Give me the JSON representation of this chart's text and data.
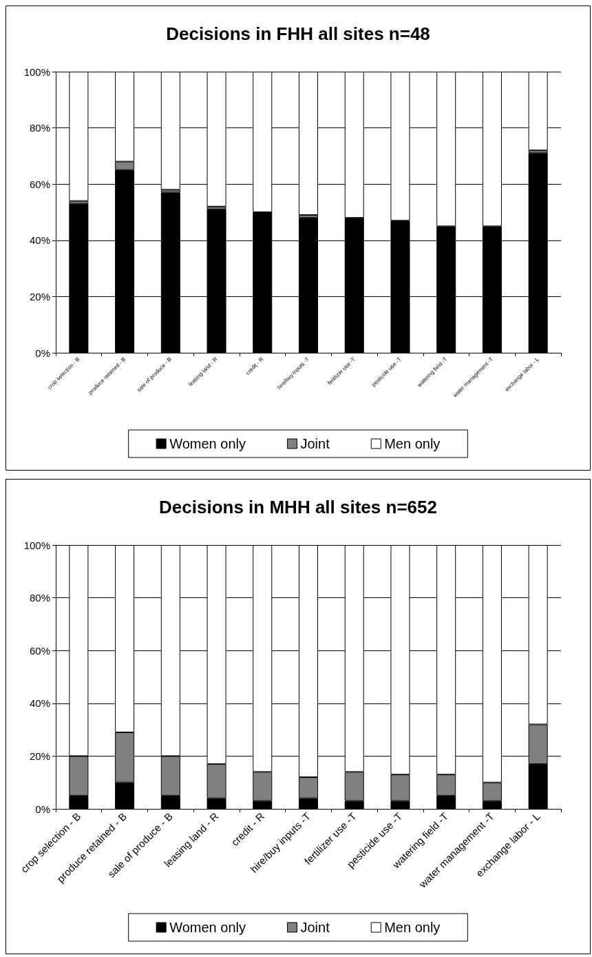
{
  "chart_data": [
    {
      "type": "bar",
      "title": "Decisions in FHH all sites n=48",
      "stacked": true,
      "categories": [
        "crop selection - B",
        "produce retained - B",
        "sale of produce - B",
        "leasing land - R",
        "credit - R",
        "hire/buy inputs -T",
        "fertilizer use -T",
        "pesticide use -T",
        "watering field -T",
        "water management -T",
        "exchange labor - L"
      ],
      "series": [
        {
          "name": "Women only",
          "color": "#000000",
          "values": [
            53,
            65,
            57,
            51,
            50,
            48,
            48,
            47,
            45,
            45,
            71
          ]
        },
        {
          "name": "Joint",
          "color": "#808080",
          "values": [
            1,
            3,
            1,
            1,
            0,
            1,
            0,
            0,
            0,
            0,
            1
          ]
        },
        {
          "name": "Men only",
          "color": "#ffffff",
          "values": [
            46,
            32,
            42,
            48,
            50,
            51,
            52,
            53,
            55,
            55,
            28
          ]
        }
      ],
      "ylim": [
        0,
        100
      ],
      "yticks": [
        {
          "value": 0,
          "label": "0%"
        },
        {
          "value": 20,
          "label": "20%"
        },
        {
          "value": 40,
          "label": "40%"
        },
        {
          "value": 60,
          "label": "60%"
        },
        {
          "value": 80,
          "label": "80%"
        },
        {
          "value": 100,
          "label": "100%"
        }
      ],
      "grid": "y",
      "legend": "bottom"
    },
    {
      "type": "bar",
      "title": "Decisions in MHH all sites n=652",
      "stacked": true,
      "categories": [
        "crop selection - B",
        "produce retained - B",
        "sale of produce - B",
        "leasing land - R",
        "credit - R",
        "hire/buy inputs -T",
        "fertilizer use -T",
        "pesticide use -T",
        "watering field -T",
        "water management -T",
        "exchange labor - L"
      ],
      "series": [
        {
          "name": "Women only",
          "color": "#000000",
          "values": [
            5,
            10,
            5,
            4,
            3,
            4,
            3,
            3,
            5,
            3,
            17
          ]
        },
        {
          "name": "Joint",
          "color": "#808080",
          "values": [
            15,
            19,
            15,
            13,
            11,
            8,
            11,
            10,
            8,
            7,
            15
          ]
        },
        {
          "name": "Men only",
          "color": "#ffffff",
          "values": [
            80,
            71,
            80,
            83,
            86,
            88,
            86,
            87,
            87,
            90,
            68
          ]
        }
      ],
      "ylim": [
        0,
        100
      ],
      "yticks": [
        {
          "value": 0,
          "label": "0%"
        },
        {
          "value": 20,
          "label": "20%"
        },
        {
          "value": 40,
          "label": "40%"
        },
        {
          "value": 60,
          "label": "60%"
        },
        {
          "value": 80,
          "label": "80%"
        },
        {
          "value": 100,
          "label": "100%"
        }
      ],
      "grid": "y",
      "legend": "bottom"
    }
  ]
}
